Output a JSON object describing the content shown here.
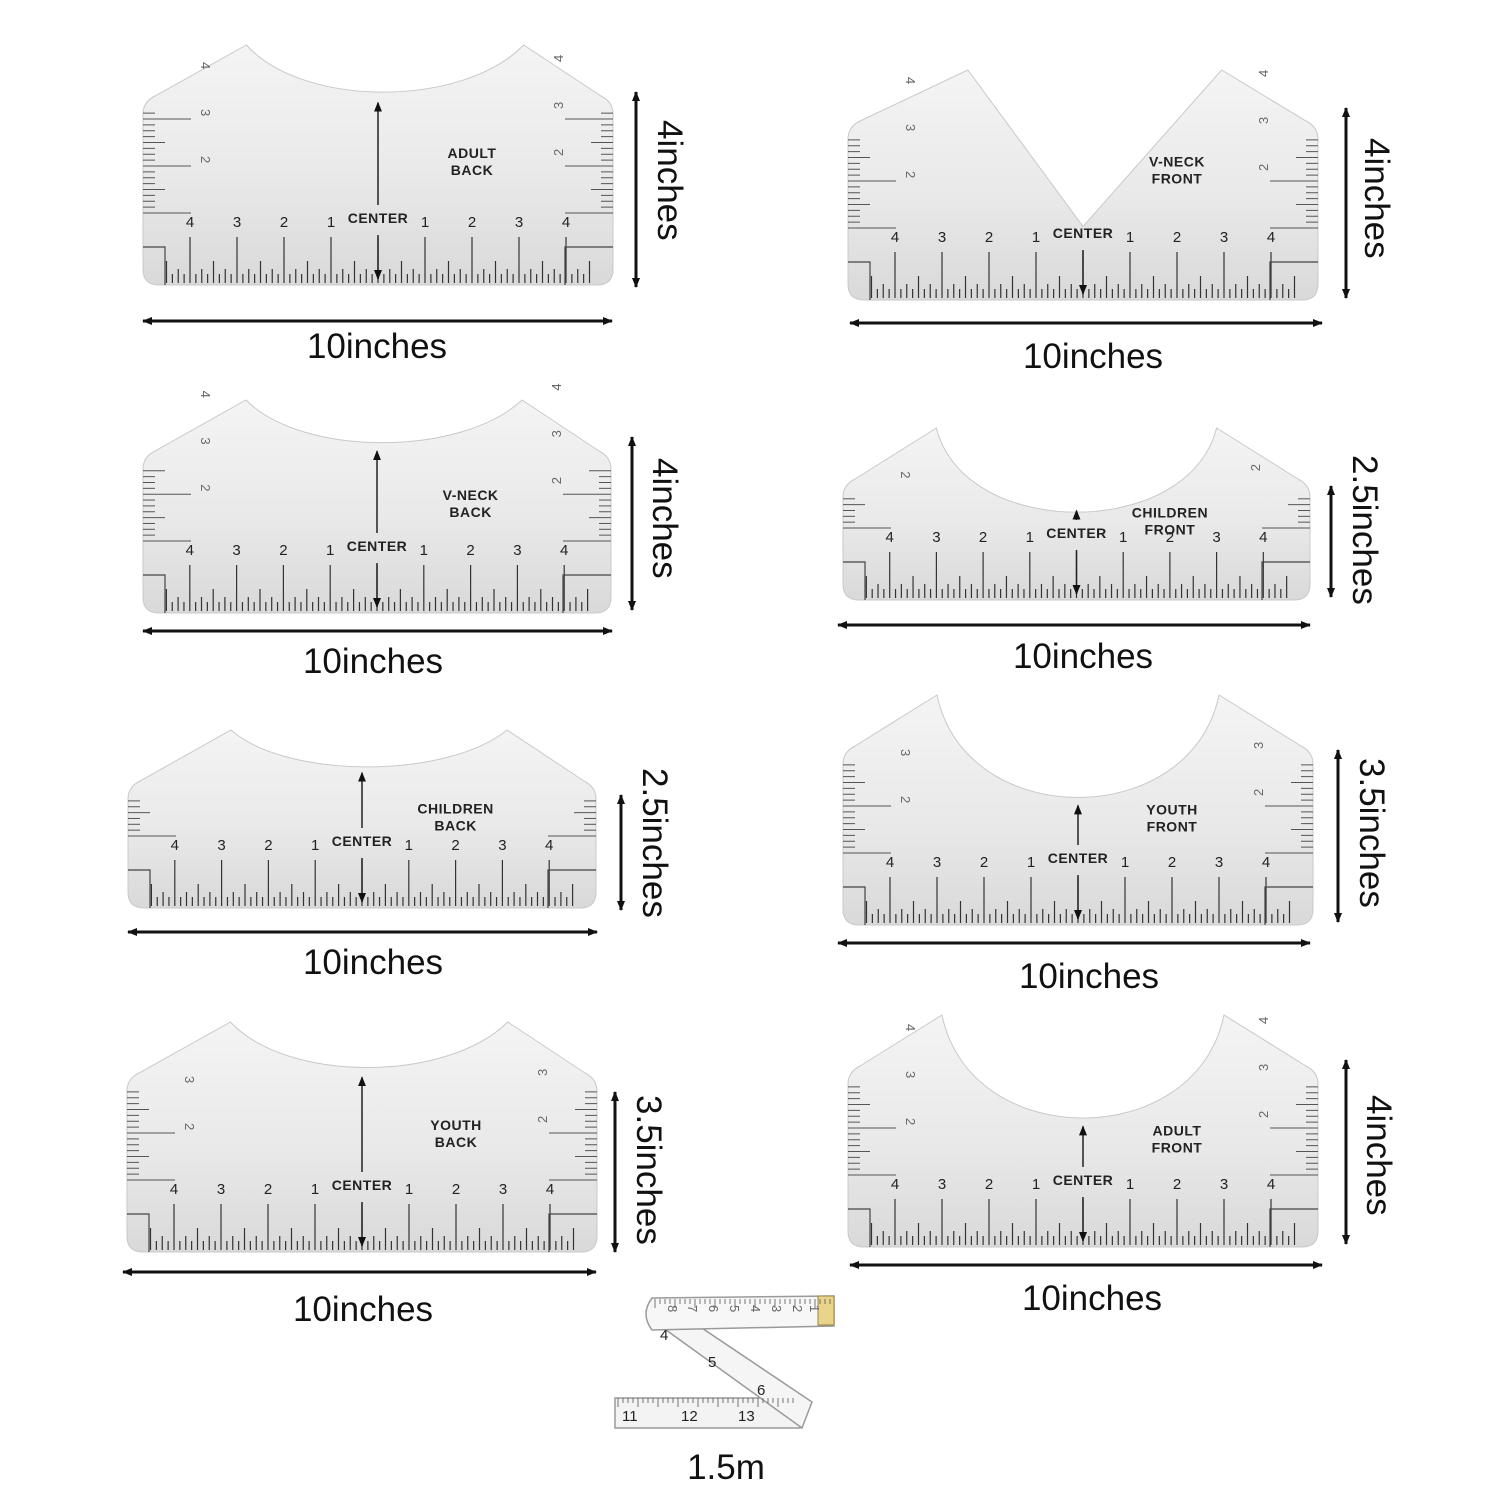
{
  "rulers": [
    {
      "id": "adult-back",
      "label": [
        "ADULT",
        "BACK"
      ],
      "neck": "round",
      "height_label": "4inches",
      "width_label": "10inches",
      "side_scale": [
        "4",
        "3",
        "2"
      ],
      "scale": [
        "4",
        "3",
        "2",
        "1",
        "1",
        "2",
        "3",
        "4"
      ],
      "center": "CENTER"
    },
    {
      "id": "vneck-front",
      "label": [
        "V-NECK",
        "FRONT"
      ],
      "neck": "v",
      "height_label": "4inches",
      "width_label": "10inches",
      "side_scale": [
        "4",
        "3",
        "2"
      ],
      "scale": [
        "4",
        "3",
        "2",
        "1",
        "1",
        "2",
        "3",
        "4"
      ],
      "center": "CENTER"
    },
    {
      "id": "vneck-back",
      "label": [
        "V-NECK",
        "BACK"
      ],
      "neck": "round",
      "height_label": "4inches",
      "width_label": "10inches",
      "side_scale": [
        "4",
        "3",
        "2"
      ],
      "scale": [
        "4",
        "3",
        "2",
        "1",
        "1",
        "2",
        "3",
        "4"
      ],
      "center": "CENTER"
    },
    {
      "id": "children-front",
      "label": [
        "CHILDREN",
        "FRONT"
      ],
      "neck": "deep",
      "height_label": "2.5inches",
      "width_label": "10inches",
      "side_scale": [
        "2"
      ],
      "scale": [
        "4",
        "3",
        "2",
        "1",
        "1",
        "2",
        "3",
        "4"
      ],
      "center": "CENTER"
    },
    {
      "id": "children-back",
      "label": [
        "CHILDREN",
        "BACK"
      ],
      "neck": "round",
      "height_label": "2.5inches",
      "width_label": "10inches",
      "side_scale": [],
      "scale": [
        "4",
        "3",
        "2",
        "1",
        "1",
        "2",
        "3",
        "4"
      ],
      "center": "CENTER"
    },
    {
      "id": "youth-front",
      "label": [
        "YOUTH",
        "FRONT"
      ],
      "neck": "deep",
      "height_label": "3.5inches",
      "width_label": "10inches",
      "side_scale": [
        "3",
        "2"
      ],
      "scale": [
        "4",
        "3",
        "2",
        "1",
        "1",
        "2",
        "3",
        "4"
      ],
      "center": "CENTER"
    },
    {
      "id": "youth-back",
      "label": [
        "YOUTH",
        "BACK"
      ],
      "neck": "round",
      "height_label": "3.5inches",
      "width_label": "10inches",
      "side_scale": [
        "3",
        "2"
      ],
      "scale": [
        "4",
        "3",
        "2",
        "1",
        "1",
        "2",
        "3",
        "4"
      ],
      "center": "CENTER"
    },
    {
      "id": "adult-front",
      "label": [
        "ADULT",
        "FRONT"
      ],
      "neck": "deep",
      "height_label": "4inches",
      "width_label": "10inches",
      "side_scale": [
        "4",
        "3",
        "2"
      ],
      "scale": [
        "4",
        "3",
        "2",
        "1",
        "1",
        "2",
        "3",
        "4"
      ],
      "center": "CENTER"
    }
  ],
  "tape": {
    "length_label": "1.5m",
    "top_numbers": [
      "8",
      "7",
      "6",
      "5",
      "4",
      "3",
      "2",
      "1"
    ],
    "mid_numbers": [
      "4",
      "5",
      "6"
    ],
    "bottom_numbers": [
      "11",
      "12",
      "13"
    ]
  }
}
